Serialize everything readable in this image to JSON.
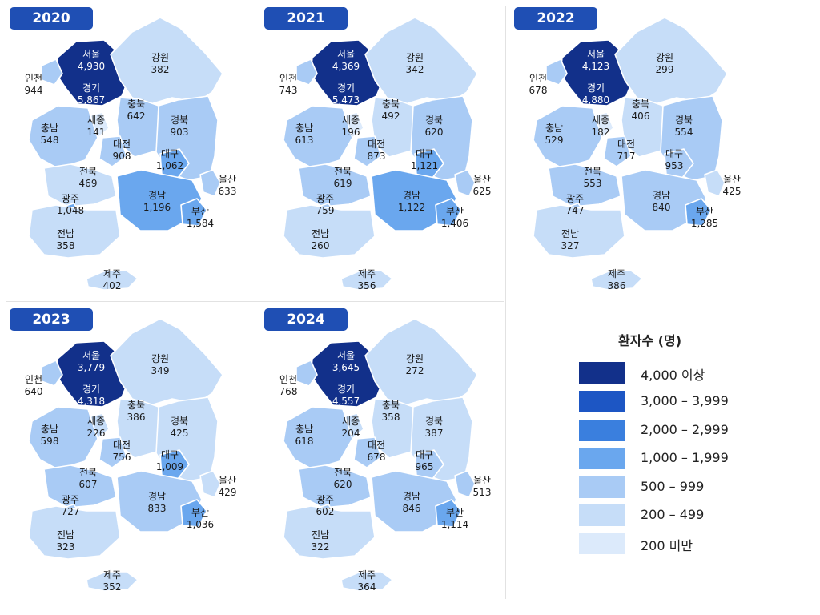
{
  "colors": {
    "bin_4000_plus": "#12308a",
    "bin_3000_3999": "#1d56c4",
    "bin_2000_2999": "#3a7fde",
    "bin_1000_1999": "#6aa7ee",
    "bin_500_999": "#a9cbf5",
    "bin_200_499": "#c6ddf8",
    "bin_under_200": "#dceafb",
    "badge": "#1f4fb4"
  },
  "legend": {
    "title": "환자수 (명)",
    "items": [
      {
        "label": "4,000 이상",
        "color": "#12308a"
      },
      {
        "label": "3,000 – 3,999",
        "color": "#1d56c4"
      },
      {
        "label": "2,000 – 2,999",
        "color": "#3a7fde"
      },
      {
        "label": "1,000 – 1,999",
        "color": "#6aa7ee"
      },
      {
        "label": "500 – 999",
        "color": "#a9cbf5"
      },
      {
        "label": "200 – 499",
        "color": "#c6ddf8"
      },
      {
        "label": "200 미만",
        "color": "#dceafb"
      }
    ]
  },
  "regions": [
    "서울",
    "경기",
    "인천",
    "강원",
    "충북",
    "세종",
    "충남",
    "대전",
    "경북",
    "대구",
    "전북",
    "울산",
    "광주",
    "경남",
    "부산",
    "전남",
    "제주"
  ],
  "years": [
    {
      "year": "2020",
      "values": {
        "서울": "4,930",
        "경기": "5,867",
        "인천": "944",
        "강원": "382",
        "충북": "642",
        "세종": "141",
        "충남": "548",
        "대전": "908",
        "경북": "903",
        "대구": "1,062",
        "전북": "469",
        "울산": "633",
        "광주": "1,048",
        "경남": "1,196",
        "부산": "1,584",
        "전남": "358",
        "제주": "402"
      }
    },
    {
      "year": "2021",
      "values": {
        "서울": "4,369",
        "경기": "5,473",
        "인천": "743",
        "강원": "342",
        "충북": "492",
        "세종": "196",
        "충남": "613",
        "대전": "873",
        "경북": "620",
        "대구": "1,121",
        "전북": "619",
        "울산": "625",
        "광주": "759",
        "경남": "1,122",
        "부산": "1,406",
        "전남": "260",
        "제주": "356"
      }
    },
    {
      "year": "2022",
      "values": {
        "서울": "4,123",
        "경기": "4,880",
        "인천": "678",
        "강원": "299",
        "충북": "406",
        "세종": "182",
        "충남": "529",
        "대전": "717",
        "경북": "554",
        "대구": "953",
        "전북": "553",
        "울산": "425",
        "광주": "747",
        "경남": "840",
        "부산": "1,285",
        "전남": "327",
        "제주": "386"
      }
    },
    {
      "year": "2023",
      "values": {
        "서울": "3,779",
        "경기": "4,318",
        "인천": "640",
        "강원": "349",
        "충북": "386",
        "세종": "226",
        "충남": "598",
        "대전": "756",
        "경북": "425",
        "대구": "1,009",
        "전북": "607",
        "울산": "429",
        "광주": "727",
        "경남": "833",
        "부산": "1,036",
        "전남": "323",
        "제주": "352"
      }
    },
    {
      "year": "2024",
      "values": {
        "서울": "3,645",
        "경기": "4,557",
        "인천": "768",
        "강원": "272",
        "충북": "358",
        "세종": "204",
        "충남": "618",
        "대전": "678",
        "경북": "387",
        "대구": "965",
        "전북": "620",
        "울산": "513",
        "광주": "602",
        "경남": "846",
        "부산": "1,114",
        "전남": "322",
        "제주": "364"
      }
    }
  ]
}
